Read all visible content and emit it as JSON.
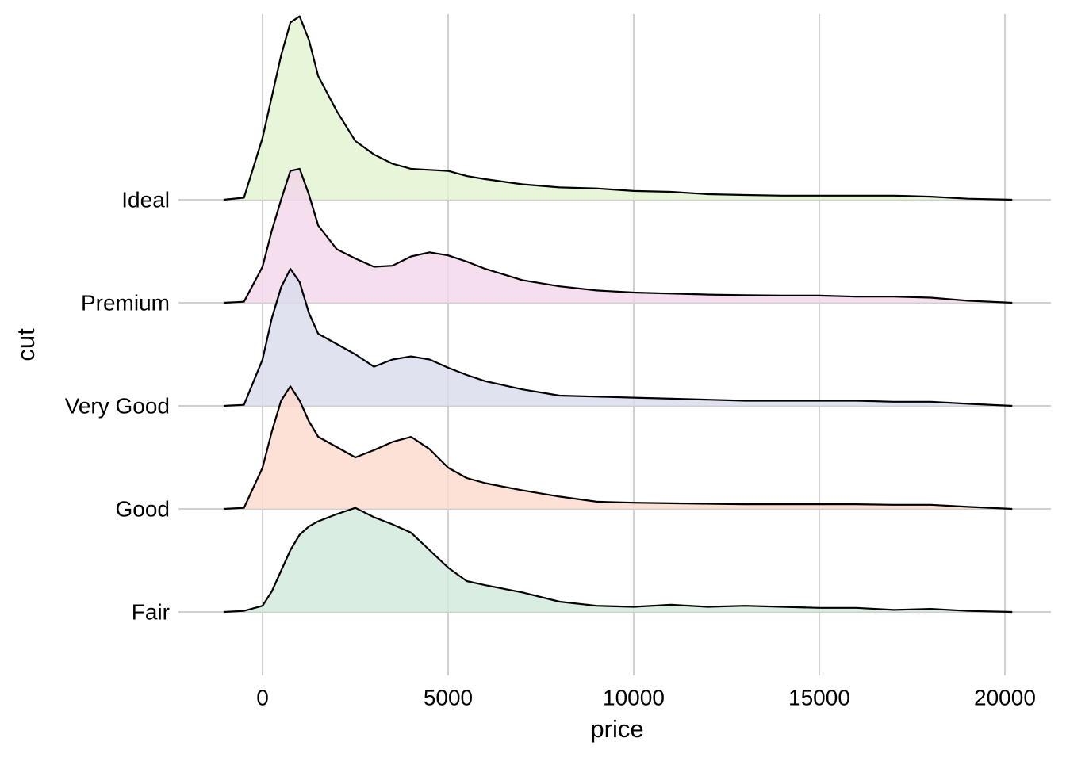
{
  "chart_data": {
    "type": "ridgeline",
    "x_label": "price",
    "y_label": "cut",
    "xlim": [
      -2265,
      21240
    ],
    "xticks": [
      0,
      5000,
      10000,
      15000,
      20000
    ],
    "grid": true,
    "x": [
      -1050,
      -500,
      0,
      250,
      500,
      750,
      1000,
      1250,
      1500,
      2000,
      2500,
      3000,
      3500,
      4000,
      4500,
      5000,
      5500,
      6000,
      7000,
      8000,
      9000,
      10000,
      11000,
      12000,
      13000,
      14000,
      15000,
      16000,
      17000,
      18000,
      19000,
      20200
    ],
    "series": [
      {
        "name": "Fair",
        "color": "#cfe8dc",
        "values": [
          0,
          0.01,
          0.06,
          0.2,
          0.4,
          0.6,
          0.75,
          0.83,
          0.88,
          0.95,
          1.01,
          0.92,
          0.85,
          0.77,
          0.6,
          0.43,
          0.3,
          0.26,
          0.19,
          0.1,
          0.06,
          0.05,
          0.07,
          0.05,
          0.06,
          0.05,
          0.04,
          0.04,
          0.02,
          0.03,
          0.01,
          0
        ]
      },
      {
        "name": "Good",
        "color": "#fdd8cc",
        "values": [
          0,
          0.01,
          0.4,
          0.75,
          1.05,
          1.19,
          1.05,
          0.85,
          0.7,
          0.6,
          0.5,
          0.57,
          0.65,
          0.7,
          0.58,
          0.4,
          0.3,
          0.25,
          0.18,
          0.12,
          0.07,
          0.06,
          0.055,
          0.05,
          0.045,
          0.045,
          0.045,
          0.045,
          0.04,
          0.04,
          0.02,
          0
        ]
      },
      {
        "name": "Very Good",
        "color": "#d8dbec",
        "values": [
          0,
          0.01,
          0.45,
          0.85,
          1.15,
          1.33,
          1.2,
          0.9,
          0.7,
          0.6,
          0.5,
          0.38,
          0.45,
          0.48,
          0.45,
          0.37,
          0.3,
          0.24,
          0.16,
          0.1,
          0.09,
          0.08,
          0.07,
          0.06,
          0.05,
          0.05,
          0.05,
          0.05,
          0.04,
          0.04,
          0.02,
          0
        ]
      },
      {
        "name": "Premium",
        "color": "#f3d6ea",
        "values": [
          0,
          0.01,
          0.35,
          0.7,
          1.0,
          1.28,
          1.3,
          1.05,
          0.75,
          0.52,
          0.43,
          0.35,
          0.36,
          0.45,
          0.49,
          0.46,
          0.4,
          0.33,
          0.22,
          0.16,
          0.12,
          0.1,
          0.09,
          0.08,
          0.075,
          0.07,
          0.07,
          0.06,
          0.06,
          0.05,
          0.02,
          0
        ]
      },
      {
        "name": "Ideal",
        "color": "#e1f2cf",
        "values": [
          0,
          0.02,
          0.6,
          1.0,
          1.4,
          1.72,
          1.78,
          1.55,
          1.2,
          0.86,
          0.57,
          0.44,
          0.35,
          0.3,
          0.29,
          0.28,
          0.23,
          0.2,
          0.15,
          0.12,
          0.11,
          0.085,
          0.077,
          0.054,
          0.046,
          0.04,
          0.04,
          0.04,
          0.04,
          0.03,
          0.01,
          0
        ]
      }
    ]
  }
}
